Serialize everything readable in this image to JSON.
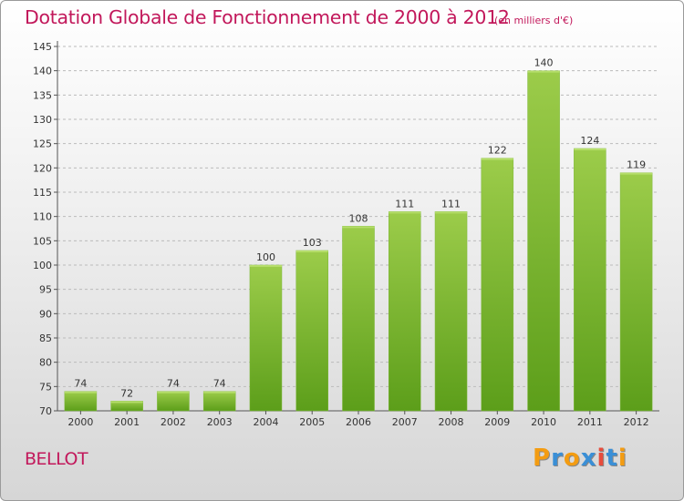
{
  "title": "Dotation Globale de Fonctionnement de 2000 à 2012",
  "unit_note": "(en milliers d'€)",
  "commune": "BELLOT",
  "logo": {
    "text": "Proxiti",
    "letters": [
      "P",
      "r",
      "o",
      "x",
      "i",
      "t",
      "i"
    ],
    "colors": [
      "#f39c12",
      "#3a8fd6",
      "#f39c12",
      "#3a8fd6",
      "#e74c3c",
      "#3a8fd6",
      "#f39c12"
    ]
  },
  "colors": {
    "title": "#c2185b",
    "bar_top": "#9ccc4a",
    "bar_bottom": "#5c9e1a",
    "grid": "#bbbbbb"
  },
  "chart_data": {
    "type": "bar",
    "title": "Dotation Globale de Fonctionnement de 2000 à 2012",
    "subtitle": "(en milliers d'€)",
    "categories": [
      "2000",
      "2001",
      "2002",
      "2003",
      "2004",
      "2005",
      "2006",
      "2007",
      "2008",
      "2009",
      "2010",
      "2011",
      "2012"
    ],
    "values": [
      74,
      72,
      74,
      74,
      100,
      103,
      108,
      111,
      111,
      122,
      140,
      124,
      119
    ],
    "ylim": [
      70,
      145
    ],
    "yticks": [
      70,
      75,
      80,
      85,
      90,
      95,
      100,
      105,
      110,
      115,
      120,
      125,
      130,
      135,
      140,
      145
    ],
    "grid": "horizontal dashed",
    "xlabel": "",
    "ylabel": ""
  }
}
